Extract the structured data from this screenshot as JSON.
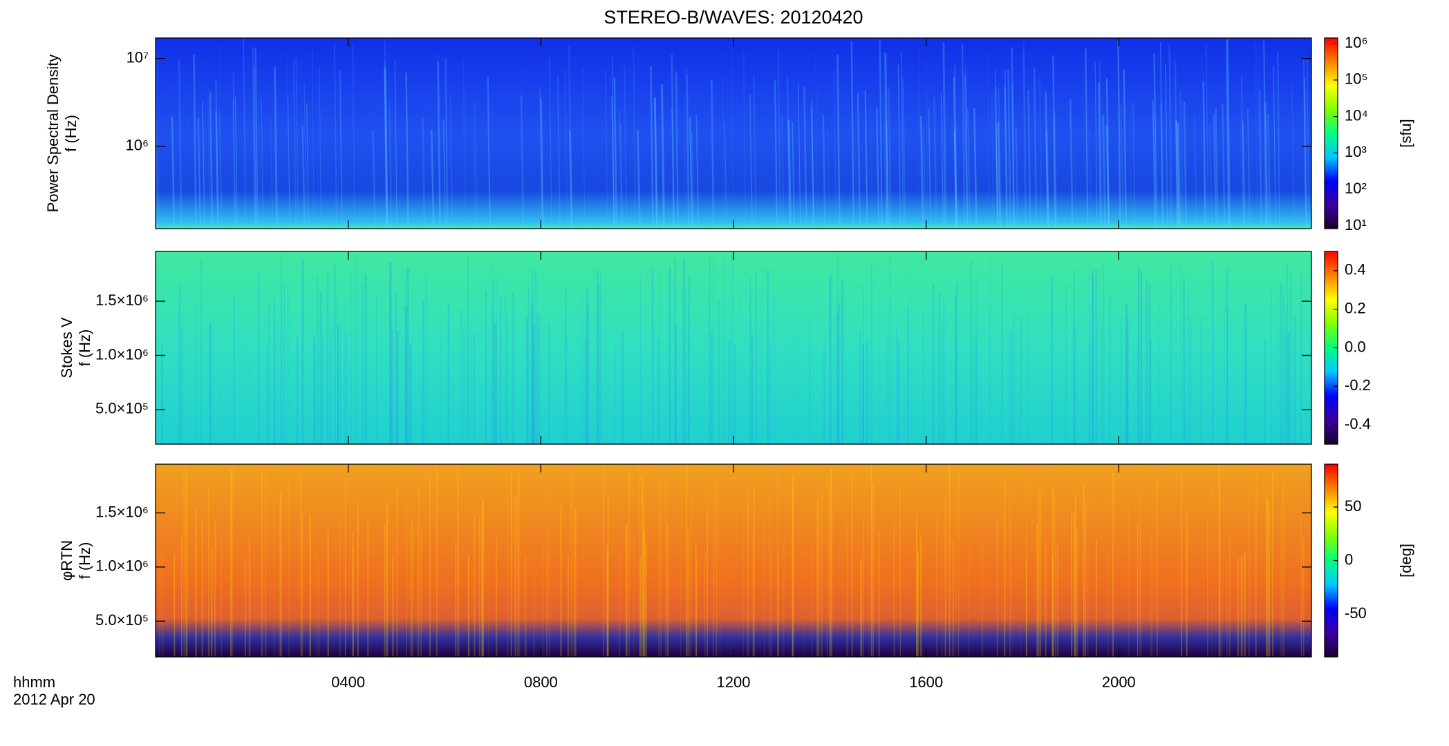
{
  "chart_data": [
    {
      "type": "spectrogram",
      "title": "STEREO-B/WAVES: 20120420",
      "ylabel": [
        "Power Spectral Density",
        "f (Hz)"
      ],
      "ylog": true,
      "ylim": [
        116000,
        17100000
      ],
      "yticks": [
        {
          "value": 1000000,
          "label": "10⁶"
        },
        {
          "value": 10000000,
          "label": "10⁷"
        }
      ],
      "xlim": [
        0,
        24
      ],
      "xticks": [
        {
          "value": 4,
          "label": "0400"
        },
        {
          "value": 8,
          "label": "0800"
        },
        {
          "value": 12,
          "label": "1200"
        },
        {
          "value": 16,
          "label": "1600"
        },
        {
          "value": 20,
          "label": "2000"
        }
      ],
      "colorbar_label": "[sfu]",
      "clog": true,
      "clim": [
        8.4,
        1420000
      ],
      "cticks": [
        {
          "value": 10,
          "label": "10¹"
        },
        {
          "value": 100,
          "label": "10²"
        },
        {
          "value": 1000,
          "label": "10³"
        },
        {
          "value": 10000,
          "label": "10⁴"
        },
        {
          "value": 100000,
          "label": "10⁵"
        },
        {
          "value": 1000000,
          "label": "10⁶"
        }
      ],
      "colormap": [
        "#1a0030",
        "#3a00a0",
        "#0000ff",
        "#00c8ff",
        "#00ff80",
        "#80ff00",
        "#ffff00",
        "#ff8000",
        "#ff0000"
      ]
    },
    {
      "type": "spectrogram",
      "ylabel": [
        "Stokes V",
        "f (Hz)"
      ],
      "ylim": [
        180000,
        1960000
      ],
      "yticks": [
        {
          "value": 500000,
          "label": "5.0×10⁵"
        },
        {
          "value": 1000000,
          "label": "1.0×10⁶"
        },
        {
          "value": 1500000,
          "label": "1.5×10⁶"
        }
      ],
      "xlim": [
        0,
        24
      ],
      "xticks": [
        {
          "value": 4,
          "label": "0400"
        },
        {
          "value": 8,
          "label": "0800"
        },
        {
          "value": 12,
          "label": "1200"
        },
        {
          "value": 16,
          "label": "1600"
        },
        {
          "value": 20,
          "label": "2000"
        }
      ],
      "clim": [
        -0.5,
        0.5
      ],
      "cticks": [
        -0.4,
        -0.2,
        {
          "value": 0,
          "label": "0.0"
        },
        0.2,
        0.4
      ],
      "colormap": [
        "#1a0030",
        "#3a00a0",
        "#0000ff",
        "#00c8ff",
        "#00ff80",
        "#80ff00",
        "#ffff00",
        "#ff8000",
        "#ff0000"
      ]
    },
    {
      "type": "spectrogram",
      "ylabel": [
        "φRTN",
        "f (Hz)"
      ],
      "ylim": [
        170000,
        1950000
      ],
      "yticks": [
        {
          "value": 500000,
          "label": "5.0×10⁵"
        },
        {
          "value": 1000000,
          "label": "1.0×10⁶"
        },
        {
          "value": 1500000,
          "label": "1.5×10⁶"
        }
      ],
      "xlim": [
        0,
        24
      ],
      "xticks": [
        {
          "value": 4,
          "label": "0400"
        },
        {
          "value": 8,
          "label": "0800"
        },
        {
          "value": 12,
          "label": "1200"
        },
        {
          "value": 16,
          "label": "1600"
        },
        {
          "value": 20,
          "label": "2000"
        }
      ],
      "xlabel": [
        "hhmm",
        "2012 Apr 20"
      ],
      "colorbar_label": "[deg]",
      "clim": [
        -90,
        90
      ],
      "cticks": [
        -50,
        0,
        50
      ],
      "colormap": [
        "#1a0030",
        "#3a00a0",
        "#0000ff",
        "#00c8ff",
        "#00ff80",
        "#80ff00",
        "#ffff00",
        "#ff8000",
        "#ff0000"
      ]
    }
  ]
}
